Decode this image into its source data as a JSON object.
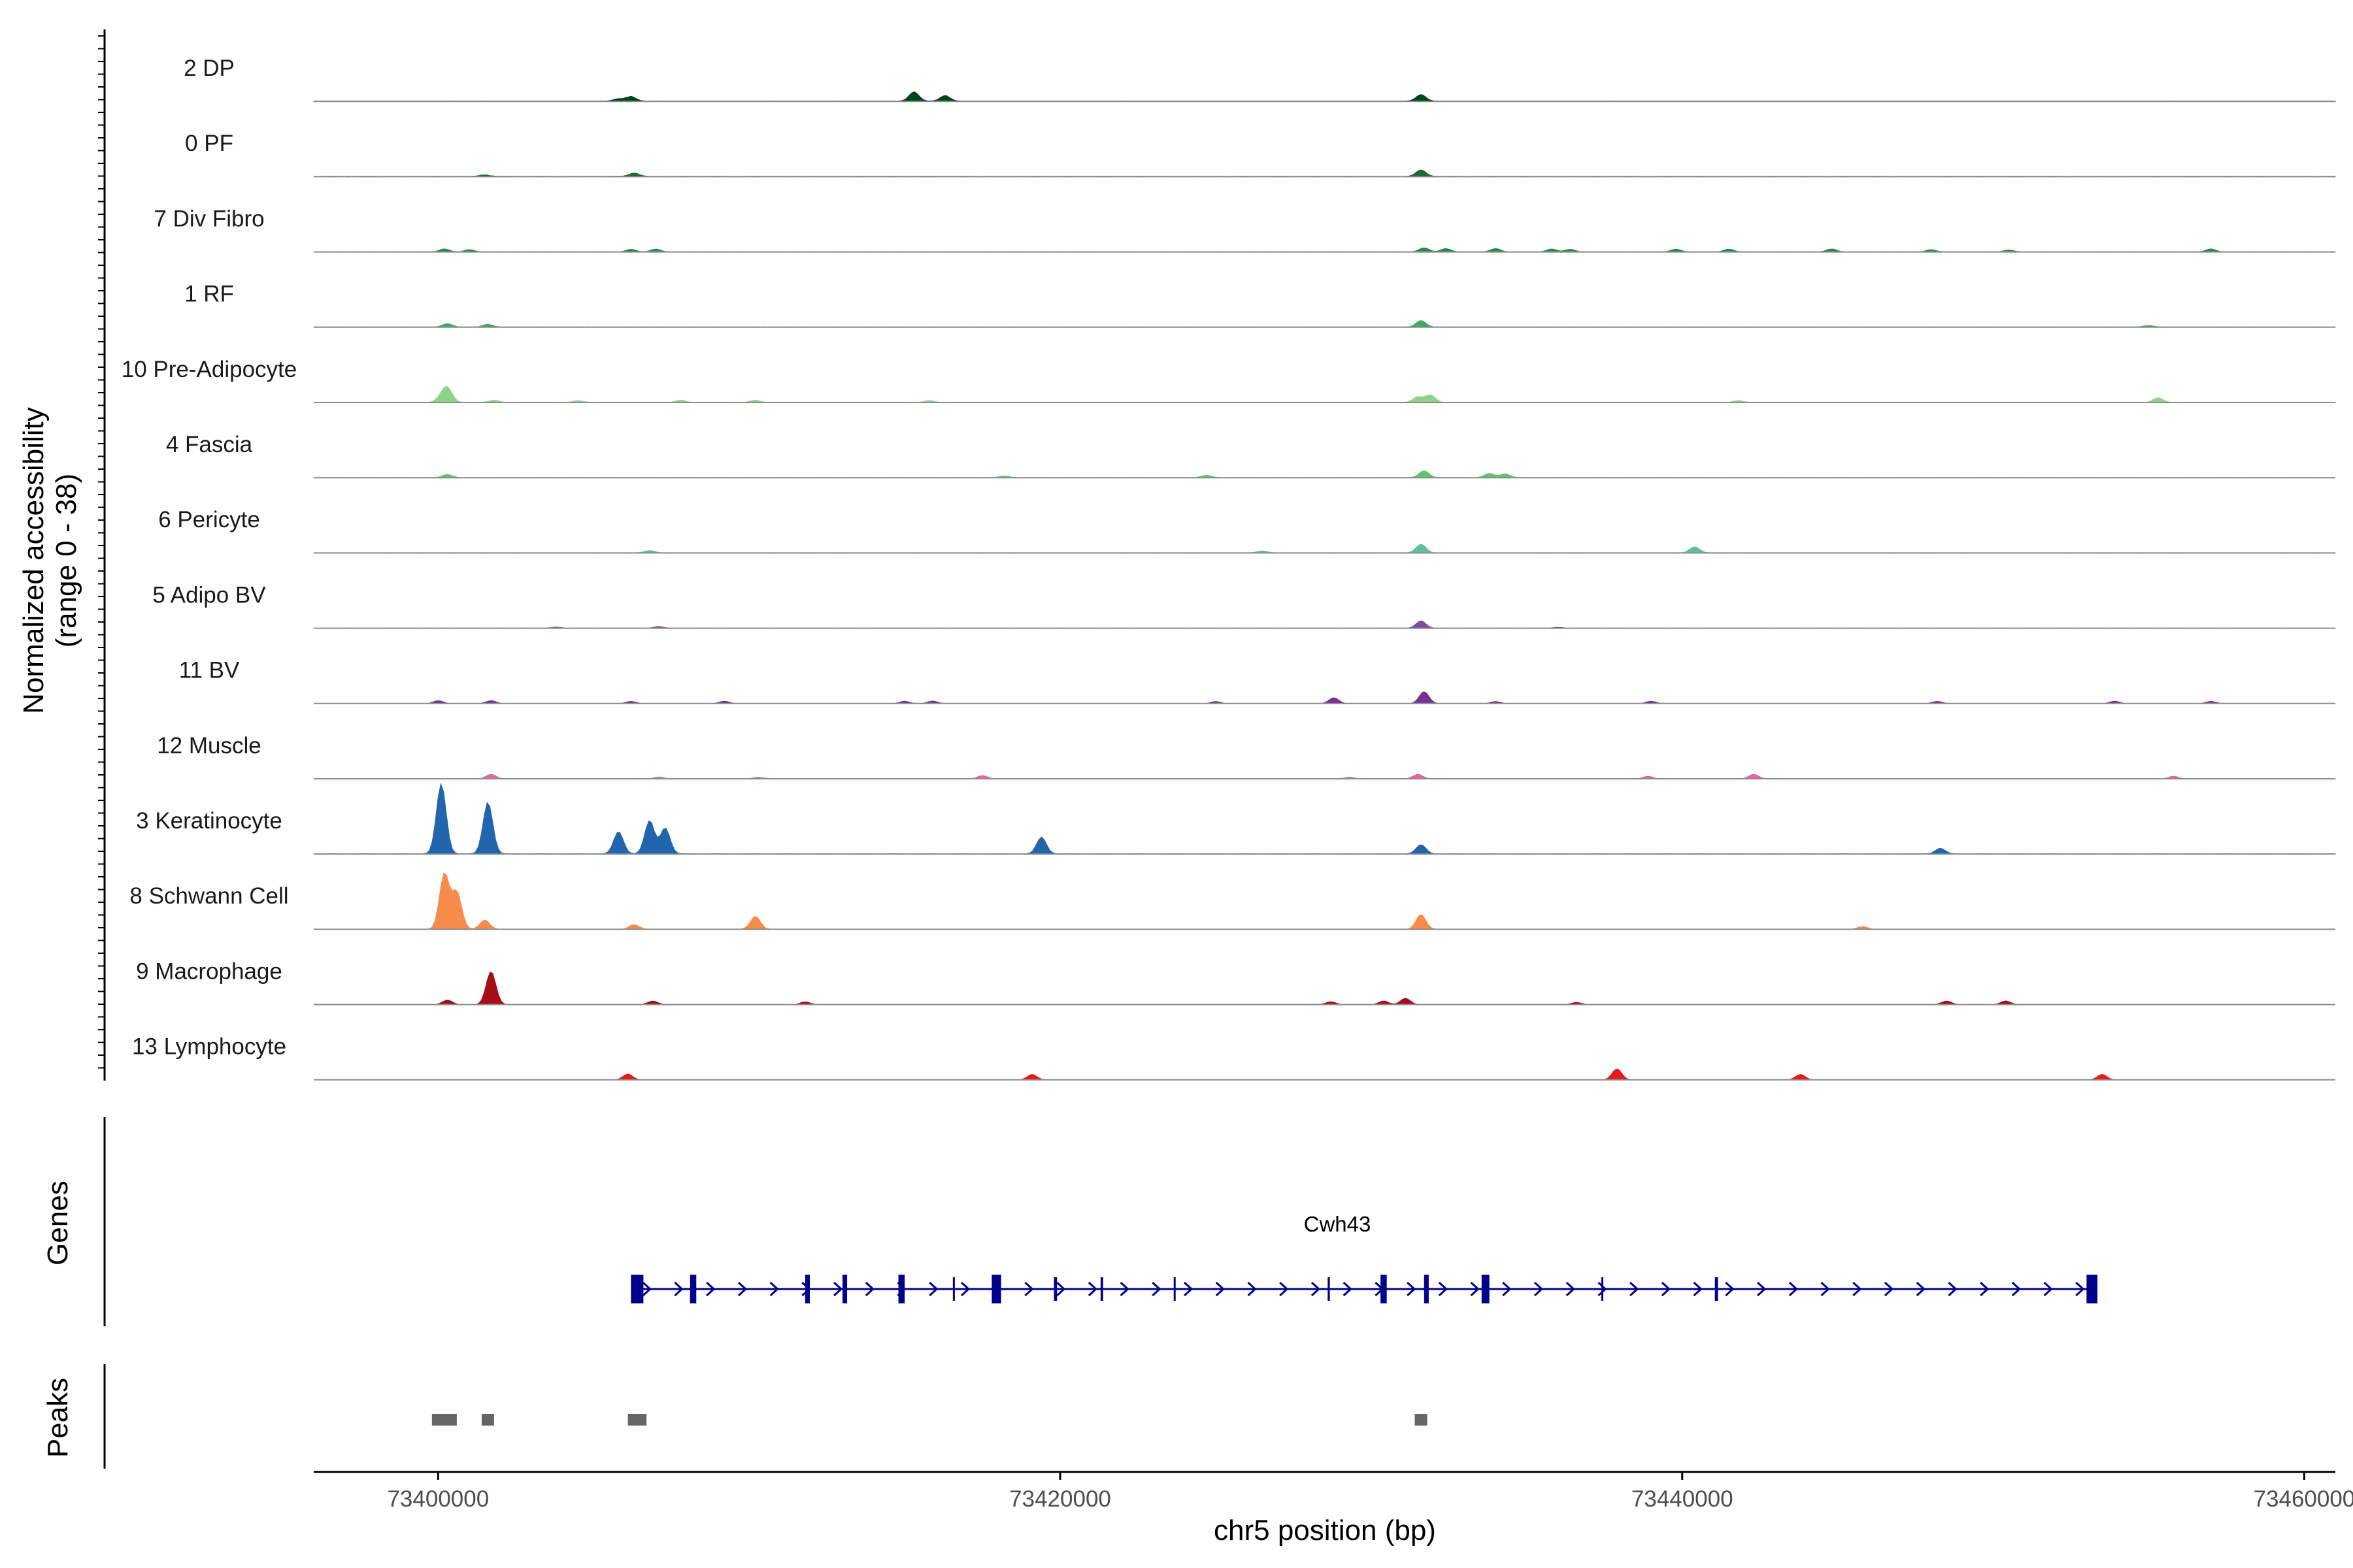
{
  "chart_data": {
    "type": "area",
    "title": "",
    "chromosome": "chr5",
    "xlabel": "chr5 position (bp)",
    "ylabel": "Normalized accessibility",
    "ylabel_range": "(range 0 - 38)",
    "ylim": [
      0,
      38
    ],
    "xlim": [
      73396000,
      73461000
    ],
    "x_ticks": [
      73400000,
      73420000,
      73440000,
      73460000
    ],
    "x_tick_labels": [
      "73400000",
      "73420000",
      "73440000",
      "73460000"
    ],
    "panel_labels": {
      "genes": "Genes",
      "peaks": "Peaks"
    },
    "series": [
      {
        "name": "2 DP",
        "color": "#00441b",
        "baseline": 0.3,
        "peaks": [
          [
            73406200,
            2.5
          ],
          [
            73415300,
            5
          ],
          [
            73416300,
            3
          ],
          [
            73431600,
            3.5
          ],
          [
            73405800,
            1.2
          ]
        ]
      },
      {
        "name": "0 PF",
        "color": "#1a6a35",
        "baseline": 0.3,
        "peaks": [
          [
            73406300,
            1.8
          ],
          [
            73431600,
            3.5
          ],
          [
            73401500,
            0.8
          ]
        ]
      },
      {
        "name": "7 Div Fibro",
        "color": "#238b45",
        "baseline": 0.1,
        "peaks": [
          [
            73400200,
            1.6
          ],
          [
            73401000,
            1.2
          ],
          [
            73406200,
            1.4
          ],
          [
            73407000,
            1.5
          ],
          [
            73431700,
            2.2
          ],
          [
            73432400,
            1.8
          ],
          [
            73434000,
            1.8
          ],
          [
            73435800,
            1.6
          ],
          [
            73436400,
            1.4
          ],
          [
            73439800,
            1.5
          ],
          [
            73441500,
            1.5
          ],
          [
            73444800,
            1.6
          ],
          [
            73448000,
            1.2
          ],
          [
            73450500,
            1.0
          ],
          [
            73457000,
            1.6
          ]
        ]
      },
      {
        "name": "1 RF",
        "color": "#41ab5d",
        "baseline": 0.2,
        "peaks": [
          [
            73400300,
            1.8
          ],
          [
            73401600,
            1.5
          ],
          [
            73431600,
            3.5
          ],
          [
            73455000,
            0.8
          ]
        ]
      },
      {
        "name": "10 Pre-Adipocyte",
        "color": "#8fd38a",
        "baseline": 0.1,
        "peaks": [
          [
            73400300,
            7.5
          ],
          [
            73400100,
            2.5
          ],
          [
            73401800,
            1.2
          ],
          [
            73404500,
            1.0
          ],
          [
            73407800,
            1.2
          ],
          [
            73410200,
            1.2
          ],
          [
            73415800,
            1.0
          ],
          [
            73431500,
            3.0
          ],
          [
            73431900,
            4.0
          ],
          [
            73441800,
            1.0
          ],
          [
            73455300,
            2.5
          ]
        ]
      },
      {
        "name": "4 Fascia",
        "color": "#5fc46f",
        "baseline": 0.2,
        "peaks": [
          [
            73400300,
            1.6
          ],
          [
            73431700,
            3.6
          ],
          [
            73433800,
            2.2
          ],
          [
            73434300,
            2.0
          ],
          [
            73424700,
            1.2
          ],
          [
            73418200,
            0.8
          ]
        ]
      },
      {
        "name": "6 Pericyte",
        "color": "#5fbf9a",
        "baseline": 0.2,
        "peaks": [
          [
            73431600,
            4.6
          ],
          [
            73440400,
            3.2
          ],
          [
            73426500,
            1.0
          ],
          [
            73406800,
            1.2
          ]
        ]
      },
      {
        "name": "5 Adipo BV",
        "color": "#7a4ea3",
        "baseline": 0.1,
        "peaks": [
          [
            73431600,
            4.0
          ],
          [
            73407100,
            0.9
          ],
          [
            73403800,
            0.6
          ],
          [
            73436000,
            0.5
          ]
        ]
      },
      {
        "name": "11 BV",
        "color": "#7b2f95",
        "baseline": 0,
        "peaks": [
          [
            73431700,
            6.5
          ],
          [
            73428800,
            3.2
          ],
          [
            73400000,
            1.6
          ],
          [
            73401700,
            1.6
          ],
          [
            73406200,
            1.2
          ],
          [
            73409200,
            1.3
          ],
          [
            73415000,
            1.3
          ],
          [
            73415900,
            1.4
          ],
          [
            73425000,
            1.1
          ],
          [
            73434000,
            1.1
          ],
          [
            73439000,
            1.3
          ],
          [
            73448200,
            1.2
          ],
          [
            73453900,
            1.3
          ],
          [
            73457000,
            1.2
          ]
        ]
      },
      {
        "name": "12 Muscle",
        "color": "#e7659c",
        "baseline": 0,
        "peaks": [
          [
            73401700,
            2.5
          ],
          [
            73431500,
            2.5
          ],
          [
            73442300,
            2.5
          ],
          [
            73417500,
            1.8
          ],
          [
            73429300,
            0.9
          ],
          [
            73438900,
            1.4
          ],
          [
            73455800,
            1.4
          ],
          [
            73407100,
            1.0
          ],
          [
            73410300,
            0.9
          ]
        ]
      },
      {
        "name": "3 Keratinocyte",
        "color": "#2166ac",
        "baseline": 0.2,
        "peaks": [
          [
            73400100,
            38
          ],
          [
            73401600,
            28
          ],
          [
            73405800,
            12
          ],
          [
            73406800,
            18
          ],
          [
            73407300,
            14
          ],
          [
            73419400,
            9
          ],
          [
            73431600,
            5
          ],
          [
            73448300,
            3
          ]
        ]
      },
      {
        "name": "8 Schwann Cell",
        "color": "#f78c4a",
        "baseline": 0.1,
        "peaks": [
          [
            73400200,
            30
          ],
          [
            73400600,
            20
          ],
          [
            73401500,
            5
          ],
          [
            73410200,
            7
          ],
          [
            73431600,
            8
          ],
          [
            73406300,
            2.5
          ],
          [
            73445800,
            1.5
          ]
        ]
      },
      {
        "name": "9 Macrophage",
        "color": "#a50f15",
        "baseline": 0,
        "peaks": [
          [
            73401700,
            18
          ],
          [
            73400300,
            2.5
          ],
          [
            73406900,
            2.0
          ],
          [
            73431100,
            3.5
          ],
          [
            73430400,
            2.0
          ],
          [
            73411800,
            1.5
          ],
          [
            73428700,
            1.6
          ],
          [
            73436600,
            1.2
          ],
          [
            73448500,
            2.0
          ],
          [
            73450400,
            2.0
          ]
        ]
      },
      {
        "name": "13 Lymphocyte",
        "color": "#e31a1c",
        "baseline": 0,
        "peaks": [
          [
            73406100,
            3.2
          ],
          [
            73419100,
            3.0
          ],
          [
            73437900,
            6.0
          ],
          [
            73443800,
            3.0
          ],
          [
            73453500,
            3.0
          ]
        ]
      }
    ],
    "gene": {
      "name": "Cwh43",
      "strand": "+",
      "start": 73406200,
      "end": 73453300,
      "exons": [
        [
          73406200,
          73406600
        ],
        [
          73408100,
          73408300
        ],
        [
          73411800,
          73411950
        ],
        [
          73413000,
          73413150
        ],
        [
          73414800,
          73415000
        ],
        [
          73416550,
          73416600
        ],
        [
          73417800,
          73418100
        ],
        [
          73419800,
          73419900
        ],
        [
          73421300,
          73421380
        ],
        [
          73423650,
          73423700
        ],
        [
          73428600,
          73428670
        ],
        [
          73430300,
          73430500
        ],
        [
          73431700,
          73431850
        ],
        [
          73433550,
          73433800
        ],
        [
          73437400,
          73437450
        ],
        [
          73441050,
          73441150
        ],
        [
          73453000,
          73453350
        ]
      ]
    },
    "peaks": [
      [
        73399800,
        73400600
      ],
      [
        73401400,
        73401800
      ],
      [
        73406100,
        73406700
      ],
      [
        73431400,
        73431800
      ]
    ]
  }
}
